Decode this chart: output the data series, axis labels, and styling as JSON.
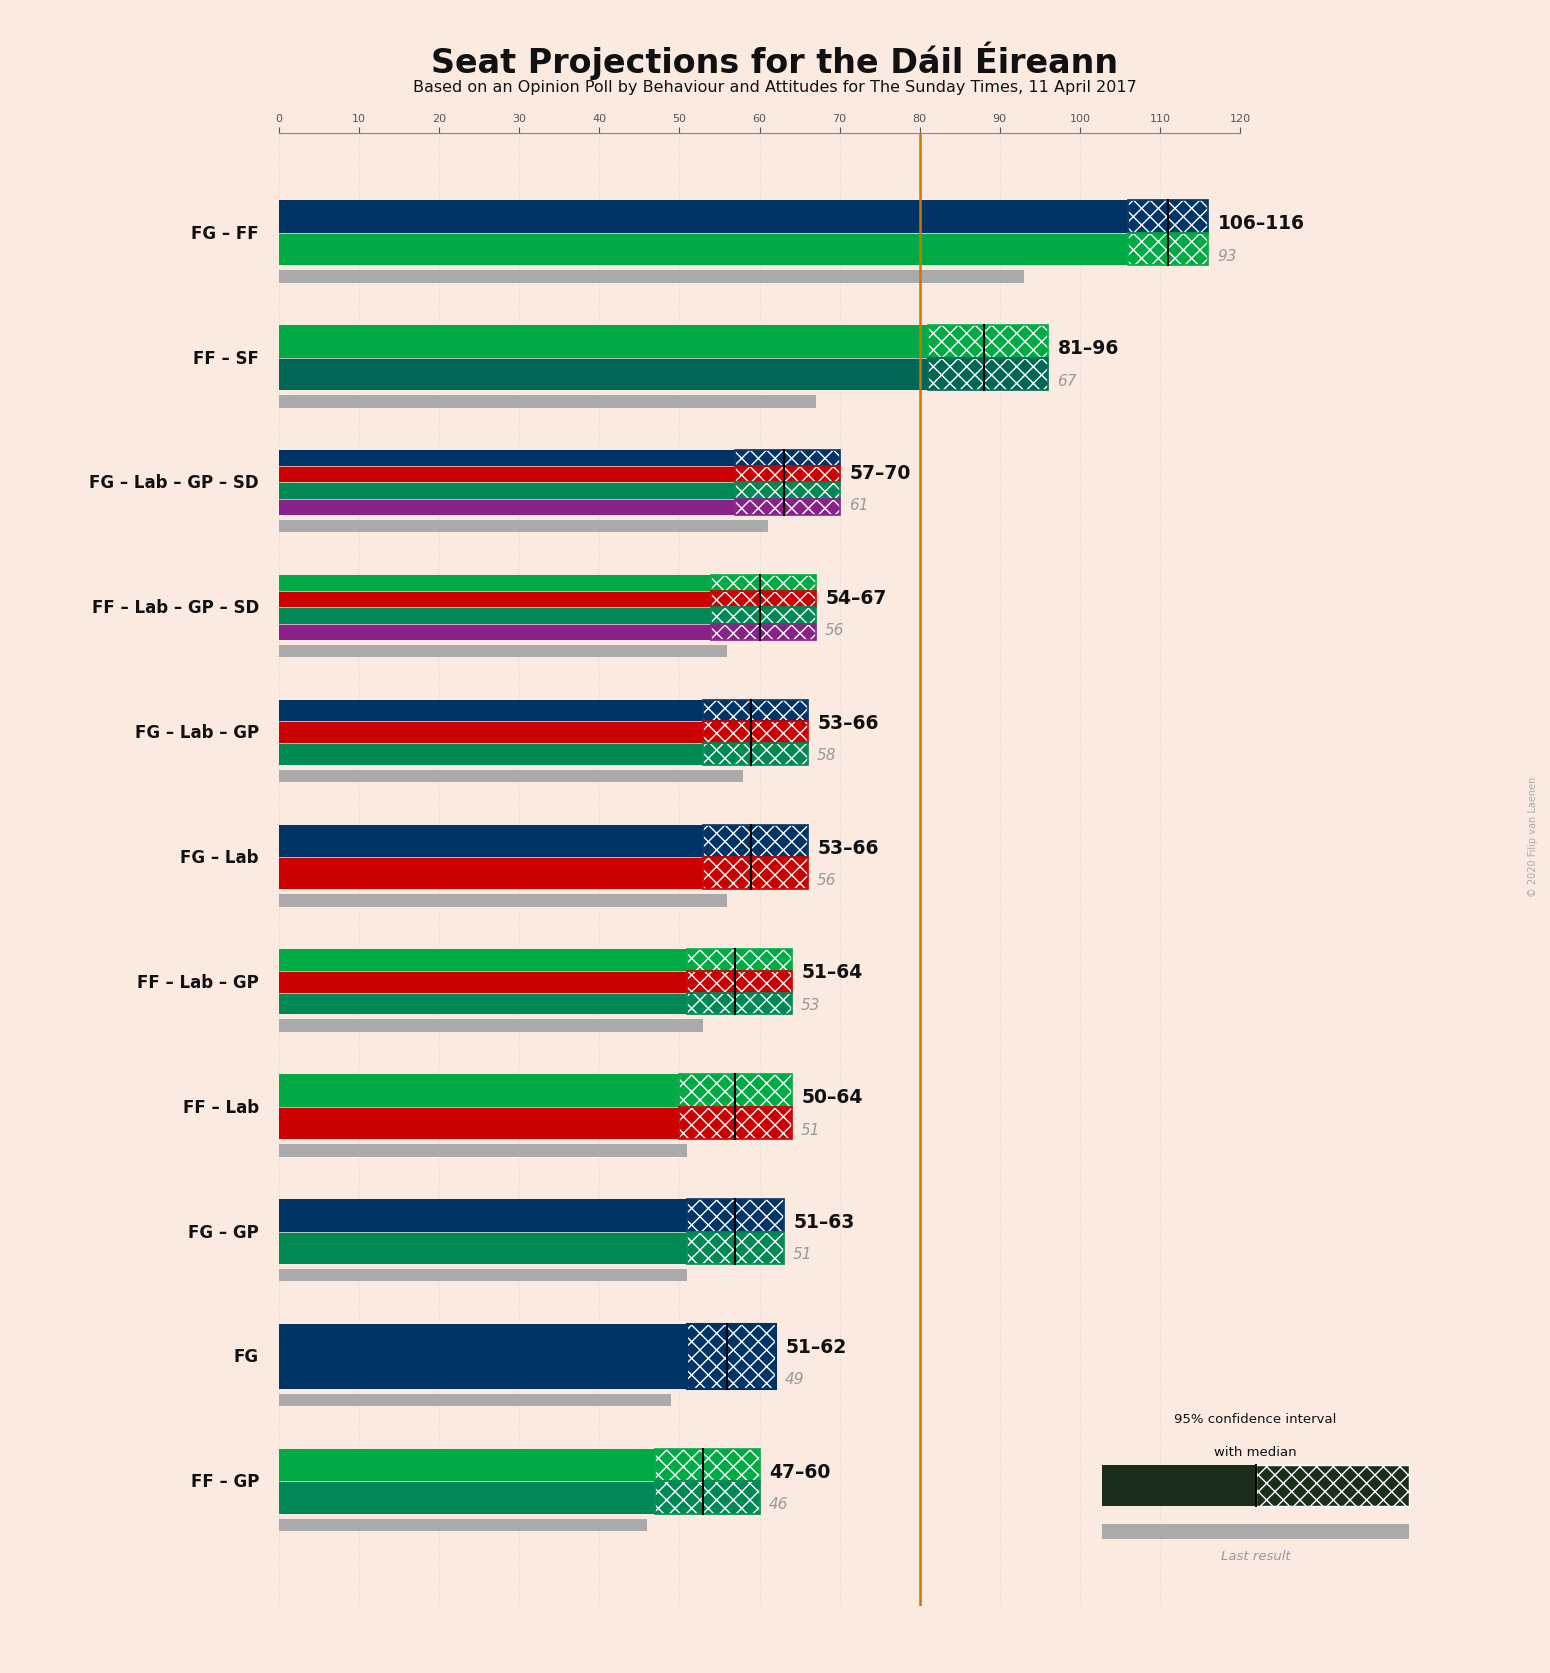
{
  "title": "Seat Projections for the Dáil Éireann",
  "subtitle": "Based on an Opinion Poll by Behaviour and Attitudes for The Sunday Times, 11 April 2017",
  "copyright": "© 2020 Filip van Laenen",
  "background_color": "#faeae0",
  "majority_line": 80,
  "x_max": 120,
  "coalitions": [
    {
      "label": "FG – FF",
      "range_low": 106,
      "range_high": 116,
      "median": 111,
      "last_result": 93,
      "colors": [
        "#003366",
        "#00aa44"
      ]
    },
    {
      "label": "FF – SF",
      "range_low": 81,
      "range_high": 96,
      "median": 88,
      "last_result": 67,
      "colors": [
        "#00aa44",
        "#006655"
      ]
    },
    {
      "label": "FG – Lab – GP – SD",
      "range_low": 57,
      "range_high": 70,
      "median": 63,
      "last_result": 61,
      "colors": [
        "#003366",
        "#cc0000",
        "#008855",
        "#882288"
      ]
    },
    {
      "label": "FF – Lab – GP – SD",
      "range_low": 54,
      "range_high": 67,
      "median": 60,
      "last_result": 56,
      "colors": [
        "#00aa44",
        "#cc0000",
        "#008855",
        "#882288"
      ]
    },
    {
      "label": "FG – Lab – GP",
      "range_low": 53,
      "range_high": 66,
      "median": 59,
      "last_result": 58,
      "colors": [
        "#003366",
        "#cc0000",
        "#008855"
      ]
    },
    {
      "label": "FG – Lab",
      "range_low": 53,
      "range_high": 66,
      "median": 59,
      "last_result": 56,
      "colors": [
        "#003366",
        "#cc0000"
      ]
    },
    {
      "label": "FF – Lab – GP",
      "range_low": 51,
      "range_high": 64,
      "median": 57,
      "last_result": 53,
      "colors": [
        "#00aa44",
        "#cc0000",
        "#008855"
      ]
    },
    {
      "label": "FF – Lab",
      "range_low": 50,
      "range_high": 64,
      "median": 57,
      "last_result": 51,
      "colors": [
        "#00aa44",
        "#cc0000"
      ]
    },
    {
      "label": "FG – GP",
      "range_low": 51,
      "range_high": 63,
      "median": 57,
      "last_result": 51,
      "colors": [
        "#003366",
        "#008855"
      ]
    },
    {
      "label": "FG",
      "range_low": 51,
      "range_high": 62,
      "median": 56,
      "last_result": 49,
      "colors": [
        "#003366"
      ]
    },
    {
      "label": "FF – GP",
      "range_low": 47,
      "range_high": 60,
      "median": 53,
      "last_result": 46,
      "colors": [
        "#00aa44",
        "#008855"
      ]
    }
  ]
}
